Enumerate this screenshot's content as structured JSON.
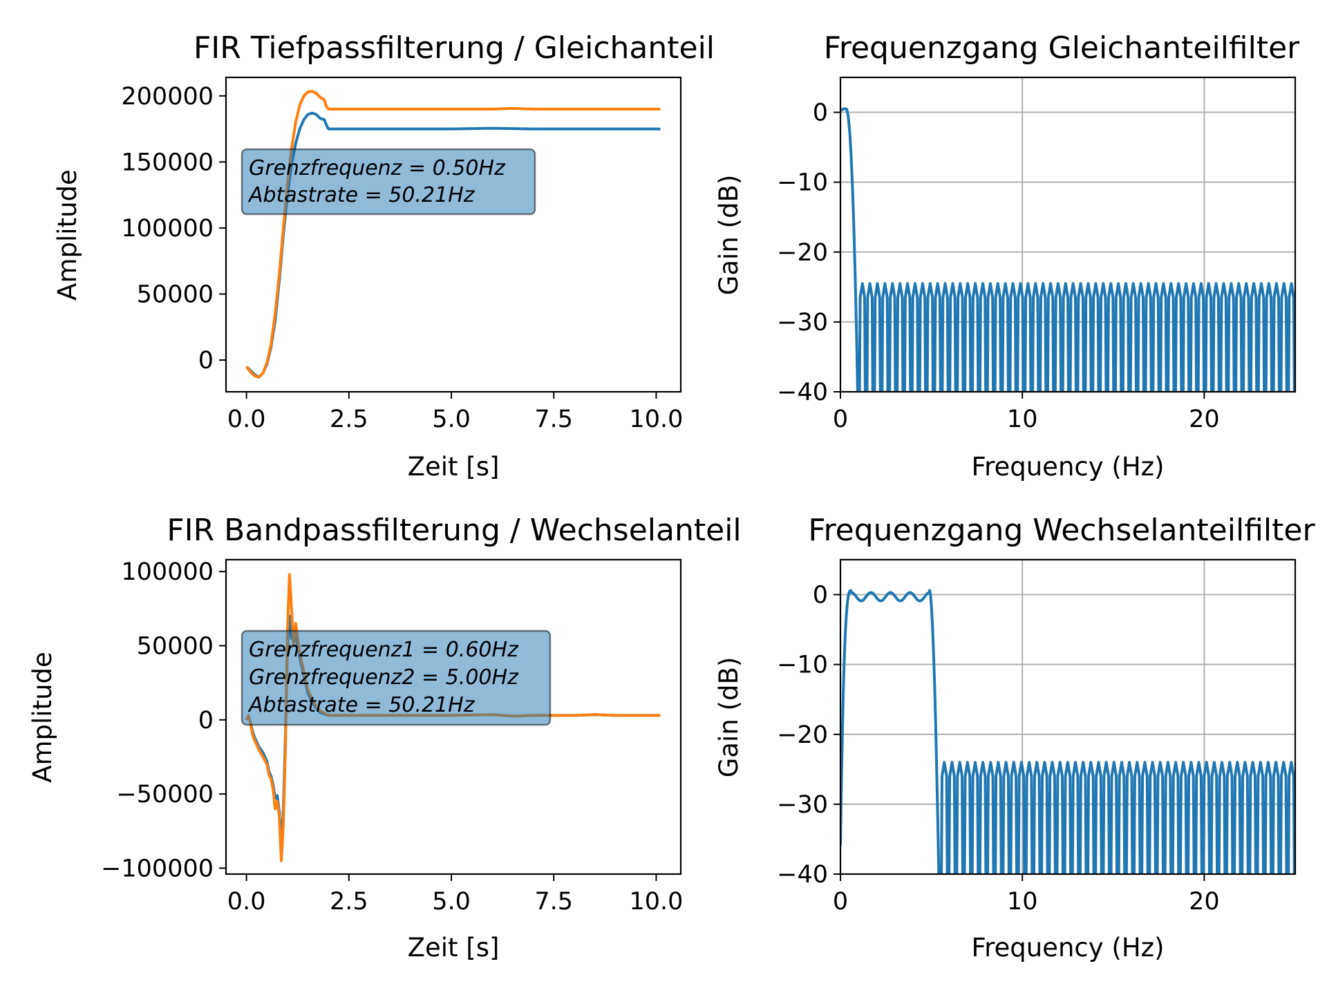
{
  "chart_data": [
    {
      "type": "line",
      "title": "FIR Tiefpassfilterung / Gleichanteil",
      "xlabel": "Zeit [s]",
      "ylabel": "Amplitude",
      "xlim": [
        -0.5,
        10.6
      ],
      "ylim": [
        -24000,
        214000
      ],
      "xticks": [
        0.0,
        2.5,
        5.0,
        7.5,
        10.0
      ],
      "xtick_labels": [
        "0.0",
        "2.5",
        "5.0",
        "7.5",
        "10.0"
      ],
      "yticks": [
        0,
        50000,
        100000,
        150000,
        200000
      ],
      "ytick_labels": [
        "0",
        "50000",
        "100000",
        "150000",
        "200000"
      ],
      "grid": false,
      "annotation": [
        "Grenzfrequenz = 0.50Hz",
        "Abtastrate = 50.21Hz"
      ],
      "colors": [
        "#1f77b4",
        "#ff7f0e"
      ],
      "series": [
        {
          "x": [
            0.0,
            0.1,
            0.2,
            0.3,
            0.4,
            0.5,
            0.6,
            0.7,
            0.8,
            0.9,
            1.0,
            1.1,
            1.2,
            1.3,
            1.4,
            1.5,
            1.6,
            1.7,
            1.8,
            1.9,
            1.95,
            2.0,
            3.0,
            4.0,
            5.0,
            6.0,
            7.0,
            8.0,
            9.0,
            10.1
          ],
          "values": [
            -5000,
            -8000,
            -11000,
            -13000,
            -10000,
            -3000,
            10000,
            30000,
            60000,
            95000,
            125000,
            148000,
            164000,
            175000,
            182000,
            186000,
            187000,
            186000,
            183000,
            182000,
            178000,
            175000,
            175000,
            175000,
            175000,
            175500,
            175000,
            175000,
            175000,
            175000
          ]
        },
        {
          "x": [
            0.0,
            0.1,
            0.2,
            0.3,
            0.4,
            0.5,
            0.6,
            0.7,
            0.8,
            0.9,
            1.0,
            1.1,
            1.2,
            1.3,
            1.4,
            1.5,
            1.6,
            1.7,
            1.8,
            1.9,
            1.95,
            2.0,
            3.0,
            4.0,
            5.0,
            6.0,
            6.5,
            7.0,
            8.0,
            9.0,
            10.1
          ],
          "values": [
            -5000,
            -9000,
            -12000,
            -13000,
            -10000,
            -2000,
            12000,
            35000,
            65000,
            100000,
            133000,
            160000,
            180000,
            193000,
            200000,
            203000,
            203500,
            202000,
            199000,
            197000,
            192000,
            190000,
            190000,
            190000,
            190000,
            190000,
            190500,
            190000,
            190000,
            190000,
            190000
          ]
        }
      ]
    },
    {
      "type": "line",
      "title": "Frequenzgang Gleichanteilfilter",
      "xlabel": "Frequency (Hz)",
      "ylabel": "Gain (dB)",
      "xlim": [
        0,
        25
      ],
      "ylim": [
        -40,
        5
      ],
      "xticks": [
        0,
        10,
        20
      ],
      "xtick_labels": [
        "0",
        "10",
        "20"
      ],
      "yticks": [
        0,
        -10,
        -20,
        -30,
        -40
      ],
      "ytick_labels": [
        "0",
        "−10",
        "−20",
        "−30",
        "−40"
      ],
      "grid": true,
      "colors": [
        "#1f77b4"
      ],
      "passband": {
        "edge_hz": 1.0,
        "peak_db": 0.5
      },
      "stopband": {
        "start_hz": 1.0,
        "ripple_top_db": -24.5,
        "lobes": 58
      }
    },
    {
      "type": "line",
      "title": "FIR Bandpassfilterung / Wechselanteil",
      "xlabel": "Zeit [s]",
      "ylabel": "Amplitude",
      "xlim": [
        -0.5,
        10.6
      ],
      "ylim": [
        -104000,
        108000
      ],
      "xticks": [
        0.0,
        2.5,
        5.0,
        7.5,
        10.0
      ],
      "xtick_labels": [
        "0.0",
        "2.5",
        "5.0",
        "7.5",
        "10.0"
      ],
      "yticks": [
        100000,
        50000,
        0,
        -50000,
        -100000
      ],
      "ytick_labels": [
        "100000",
        "50000",
        "0",
        "−50000",
        "−100000"
      ],
      "grid": false,
      "annotation": [
        "Grenzfrequenz1 = 0.60Hz",
        "Grenzfrequenz2 = 5.00Hz",
        "Abtastrate = 50.21Hz"
      ],
      "colors": [
        "#1f77b4",
        "#ff7f0e"
      ],
      "series": [
        {
          "x": [
            0.0,
            0.05,
            0.1,
            0.15,
            0.2,
            0.3,
            0.4,
            0.5,
            0.55,
            0.6,
            0.65,
            0.7,
            0.75,
            0.8,
            0.85,
            0.9,
            0.95,
            1.0,
            1.05,
            1.1,
            1.15,
            1.2,
            1.3,
            1.4,
            1.5,
            1.6,
            1.7,
            1.8,
            1.9,
            2.0,
            3.0,
            4.0,
            5.0,
            6.0,
            6.5,
            7.0,
            8.0,
            8.5,
            9.0,
            9.5,
            10.1
          ],
          "values": [
            0,
            2000,
            -2000,
            -8000,
            -12000,
            -18000,
            -22000,
            -28000,
            -35000,
            -38000,
            -44000,
            -53000,
            -51000,
            -62000,
            -85000,
            -60000,
            -10000,
            50000,
            70000,
            55000,
            60000,
            58000,
            42000,
            30000,
            18000,
            12000,
            8000,
            5000,
            4000,
            3000,
            3000,
            3000,
            3000,
            3500,
            2500,
            3000,
            3000,
            3500,
            3000,
            3000,
            3000
          ]
        },
        {
          "x": [
            0.0,
            0.05,
            0.1,
            0.15,
            0.2,
            0.3,
            0.4,
            0.5,
            0.55,
            0.6,
            0.65,
            0.7,
            0.75,
            0.8,
            0.85,
            0.9,
            0.95,
            1.0,
            1.05,
            1.1,
            1.15,
            1.2,
            1.25,
            1.3,
            1.4,
            1.5,
            1.6,
            1.7,
            1.8,
            1.9,
            2.0,
            3.0,
            4.0,
            5.0,
            6.0,
            6.5,
            7.0,
            8.0,
            8.5,
            9.0,
            9.5,
            10.1
          ],
          "values": [
            0,
            3000,
            -3000,
            -10000,
            -14000,
            -20000,
            -25000,
            -30000,
            -37000,
            -40000,
            -47000,
            -60000,
            -55000,
            -65000,
            -95000,
            -70000,
            -20000,
            60000,
            98000,
            75000,
            50000,
            65000,
            55000,
            45000,
            32000,
            20000,
            14000,
            9000,
            6000,
            4500,
            3000,
            3000,
            3000,
            3000,
            3500,
            2500,
            3000,
            3000,
            3500,
            3000,
            3000,
            3000
          ]
        }
      ]
    },
    {
      "type": "line",
      "title": "Frequenzgang Wechselanteilfilter",
      "xlabel": "Frequency (Hz)",
      "ylabel": "Gain (dB)",
      "xlim": [
        0,
        25
      ],
      "ylim": [
        -40,
        5
      ],
      "xticks": [
        0,
        10,
        20
      ],
      "xtick_labels": [
        "0",
        "10",
        "20"
      ],
      "yticks": [
        0,
        -10,
        -20,
        -30,
        -40
      ],
      "ytick_labels": [
        "0",
        "−10",
        "−20",
        "−30",
        "−40"
      ],
      "grid": true,
      "colors": [
        "#1f77b4"
      ],
      "passband": {
        "low_hz": 0.6,
        "high_hz": 5.0,
        "ripple_db": 0.6,
        "start_db": -36
      },
      "stopband": {
        "start_hz": 5.5,
        "ripple_top_db": -24,
        "lobes": 46
      }
    }
  ]
}
